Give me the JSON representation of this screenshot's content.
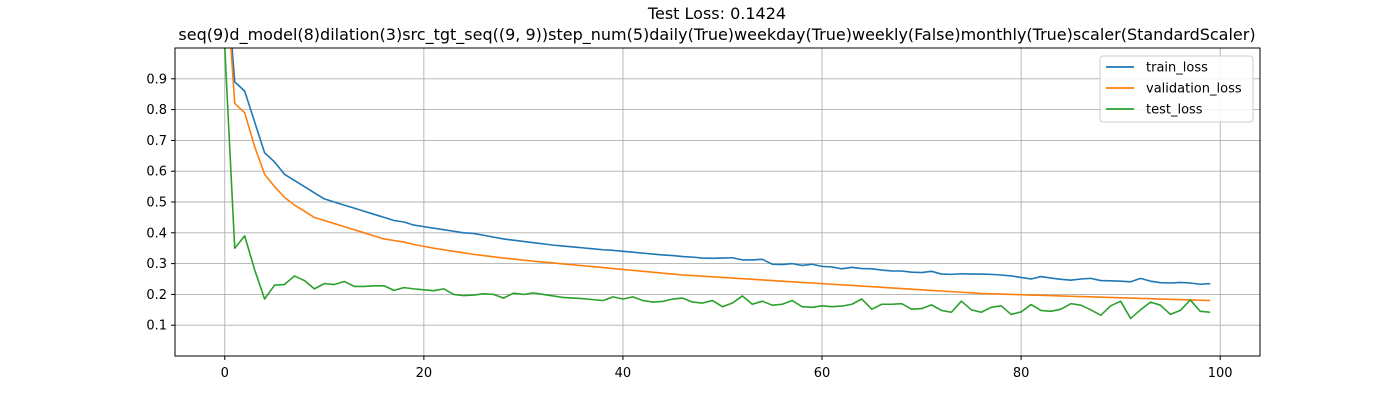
{
  "chart_data": {
    "type": "line",
    "title": "Test Loss: 0.1424",
    "subtitle": "seq(9)d_model(8)dilation(3)src_tgt_seq((9, 9))step_num(5)daily(True)weekday(True)weekly(False)monthly(True)scaler(StandardScaler)",
    "xlabel": "",
    "ylabel": "",
    "xlim": [
      -5,
      104
    ],
    "ylim": [
      0,
      1.0
    ],
    "xticks": [
      0,
      20,
      40,
      60,
      80,
      100
    ],
    "yticks": [
      0.1,
      0.2,
      0.3,
      0.4,
      0.5,
      0.6,
      0.7,
      0.8,
      0.9
    ],
    "grid": true,
    "legend_position": "top-right",
    "x": [
      0,
      1,
      2,
      3,
      4,
      5,
      6,
      7,
      8,
      9,
      10,
      11,
      12,
      13,
      14,
      15,
      16,
      17,
      18,
      19,
      20,
      21,
      22,
      23,
      24,
      25,
      26,
      27,
      28,
      29,
      30,
      31,
      32,
      33,
      34,
      35,
      36,
      37,
      38,
      39,
      40,
      41,
      42,
      43,
      44,
      45,
      46,
      47,
      48,
      49,
      50,
      51,
      52,
      53,
      54,
      55,
      56,
      57,
      58,
      59,
      60,
      61,
      62,
      63,
      64,
      65,
      66,
      67,
      68,
      69,
      70,
      71,
      72,
      73,
      74,
      75,
      76,
      77,
      78,
      79,
      80,
      81,
      82,
      83,
      84,
      85,
      86,
      87,
      88,
      89,
      90,
      91,
      92,
      93,
      94,
      95,
      96,
      97,
      98,
      99
    ],
    "series": [
      {
        "name": "train_loss",
        "color": "#1f77b4",
        "values": [
          1.3,
          0.89,
          0.86,
          0.76,
          0.66,
          0.63,
          0.59,
          0.57,
          0.55,
          0.53,
          0.51,
          0.5,
          0.49,
          0.48,
          0.47,
          0.46,
          0.45,
          0.44,
          0.435,
          0.425,
          0.42,
          0.415,
          0.41,
          0.405,
          0.4,
          0.398,
          0.392,
          0.386,
          0.38,
          0.376,
          0.372,
          0.368,
          0.364,
          0.36,
          0.357,
          0.354,
          0.351,
          0.348,
          0.345,
          0.343,
          0.34,
          0.337,
          0.334,
          0.331,
          0.328,
          0.326,
          0.323,
          0.321,
          0.318,
          0.317,
          0.318,
          0.319,
          0.312,
          0.312,
          0.314,
          0.298,
          0.297,
          0.3,
          0.294,
          0.298,
          0.291,
          0.289,
          0.283,
          0.288,
          0.284,
          0.283,
          0.279,
          0.276,
          0.276,
          0.272,
          0.271,
          0.275,
          0.266,
          0.265,
          0.267,
          0.266,
          0.266,
          0.265,
          0.263,
          0.26,
          0.255,
          0.25,
          0.258,
          0.253,
          0.249,
          0.246,
          0.25,
          0.252,
          0.245,
          0.244,
          0.243,
          0.241,
          0.252,
          0.243,
          0.238,
          0.237,
          0.239,
          0.237,
          0.233,
          0.235
        ]
      },
      {
        "name": "validation_loss",
        "color": "#ff7f0e",
        "values": [
          1.3,
          0.82,
          0.79,
          0.68,
          0.59,
          0.55,
          0.515,
          0.49,
          0.47,
          0.45,
          0.44,
          0.43,
          0.42,
          0.41,
          0.4,
          0.39,
          0.38,
          0.375,
          0.37,
          0.362,
          0.356,
          0.35,
          0.345,
          0.34,
          0.335,
          0.33,
          0.326,
          0.322,
          0.318,
          0.315,
          0.311,
          0.308,
          0.305,
          0.302,
          0.299,
          0.296,
          0.293,
          0.29,
          0.287,
          0.284,
          0.281,
          0.278,
          0.275,
          0.272,
          0.269,
          0.266,
          0.263,
          0.261,
          0.259,
          0.257,
          0.255,
          0.253,
          0.251,
          0.249,
          0.247,
          0.245,
          0.243,
          0.241,
          0.239,
          0.237,
          0.235,
          0.233,
          0.231,
          0.229,
          0.227,
          0.225,
          0.223,
          0.221,
          0.219,
          0.217,
          0.215,
          0.213,
          0.211,
          0.209,
          0.207,
          0.205,
          0.203,
          0.202,
          0.201,
          0.2,
          0.199,
          0.198,
          0.197,
          0.196,
          0.195,
          0.194,
          0.193,
          0.192,
          0.191,
          0.19,
          0.189,
          0.188,
          0.187,
          0.186,
          0.185,
          0.184,
          0.183,
          0.182,
          0.181,
          0.18
        ]
      },
      {
        "name": "test_loss",
        "color": "#2ca02c",
        "values": [
          1.0,
          0.35,
          0.39,
          0.28,
          0.185,
          0.23,
          0.232,
          0.26,
          0.245,
          0.218,
          0.235,
          0.232,
          0.242,
          0.226,
          0.226,
          0.228,
          0.228,
          0.213,
          0.222,
          0.218,
          0.215,
          0.212,
          0.218,
          0.2,
          0.196,
          0.198,
          0.202,
          0.2,
          0.188,
          0.204,
          0.2,
          0.205,
          0.2,
          0.195,
          0.19,
          0.188,
          0.186,
          0.183,
          0.18,
          0.192,
          0.185,
          0.192,
          0.18,
          0.175,
          0.177,
          0.185,
          0.188,
          0.175,
          0.172,
          0.18,
          0.16,
          0.172,
          0.195,
          0.168,
          0.178,
          0.165,
          0.168,
          0.18,
          0.16,
          0.158,
          0.163,
          0.16,
          0.162,
          0.168,
          0.185,
          0.152,
          0.168,
          0.168,
          0.17,
          0.152,
          0.154,
          0.166,
          0.148,
          0.142,
          0.178,
          0.15,
          0.142,
          0.158,
          0.163,
          0.135,
          0.143,
          0.167,
          0.148,
          0.145,
          0.152,
          0.17,
          0.165,
          0.15,
          0.132,
          0.163,
          0.178,
          0.122,
          0.15,
          0.175,
          0.165,
          0.135,
          0.148,
          0.182,
          0.145,
          0.142
        ]
      }
    ]
  }
}
